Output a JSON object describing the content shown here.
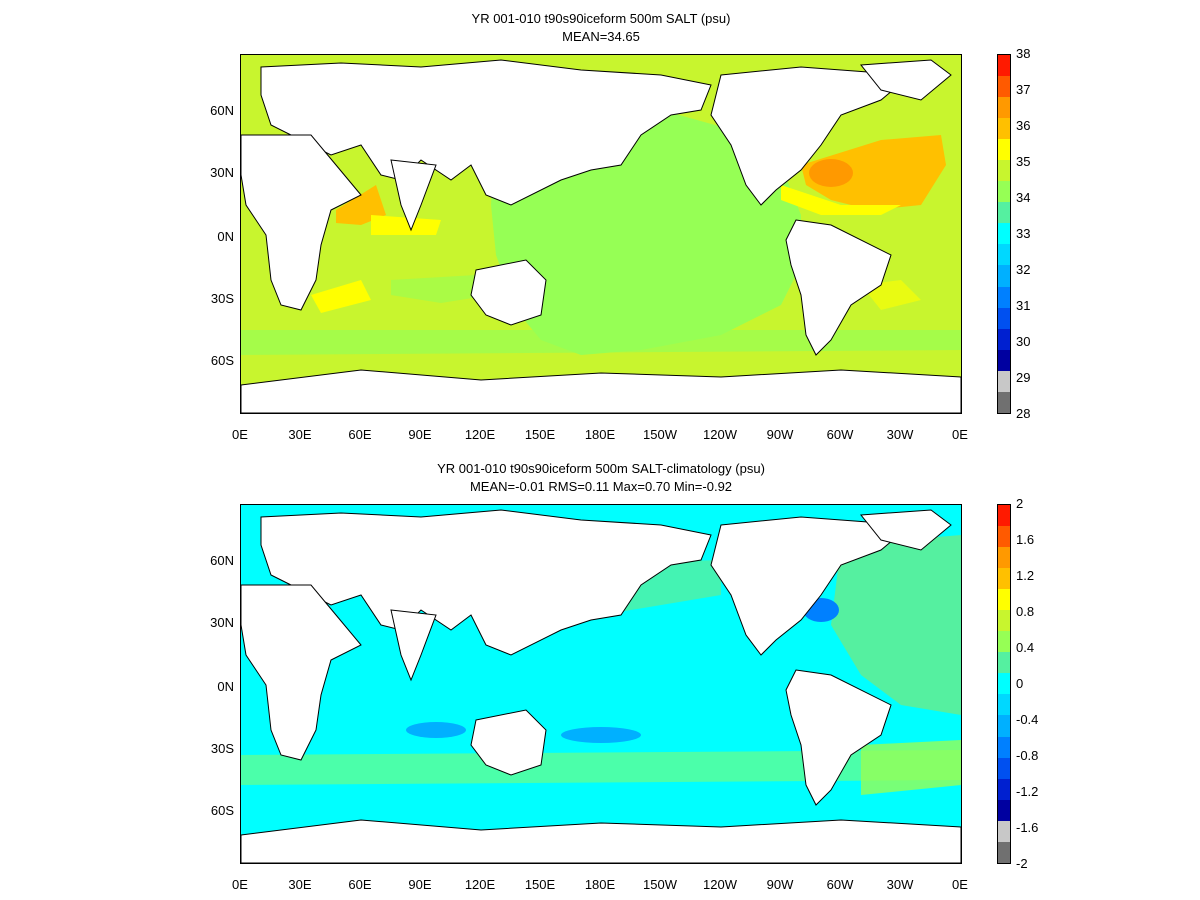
{
  "panel_top": {
    "title": "YR 001-010 t90s90iceform 500m SALT (psu)",
    "subtitle": "MEAN=34.65",
    "colorbar_labels": [
      "38",
      "37",
      "36",
      "35",
      "34",
      "33",
      "32",
      "31",
      "30",
      "29",
      "28"
    ],
    "colorbar_colors": [
      "#ff1a00",
      "#ff5a00",
      "#ff9900",
      "#ffc000",
      "#ffff00",
      "#c8f52e",
      "#96ff55",
      "#55f0a0",
      "#00ffff",
      "#00d8ff",
      "#00b0ff",
      "#0080ff",
      "#0050f0",
      "#0020d0",
      "#0000a0",
      "#c8c8c8",
      "#707070"
    ],
    "land_color": "#ffffff",
    "base_color": "#c8f52e"
  },
  "panel_bottom": {
    "title": "YR 001-010 t90s90iceform 500m SALT-climatology (psu)",
    "subtitle": "MEAN=-0.01   RMS=0.11   Max=0.70   Min=-0.92",
    "colorbar_labels": [
      "2",
      "1.6",
      "1.2",
      "0.8",
      "0.4",
      "0",
      "-0.4",
      "-0.8",
      "-1.2",
      "-1.6",
      "-2"
    ],
    "colorbar_colors": [
      "#ff1a00",
      "#ff5a00",
      "#ff9900",
      "#ffc000",
      "#ffff00",
      "#c8f52e",
      "#96ff55",
      "#55f0a0",
      "#00ffff",
      "#00d8ff",
      "#00b0ff",
      "#0080ff",
      "#0050f0",
      "#0020d0",
      "#0000a0",
      "#c8c8c8",
      "#707070"
    ],
    "land_color": "#ffffff",
    "base_color": "#00ffff"
  },
  "lat_labels": [
    "60N",
    "30N",
    "0N",
    "30S",
    "60S"
  ],
  "lon_labels": [
    "0E",
    "30E",
    "60E",
    "90E",
    "120E",
    "150E",
    "180E",
    "150W",
    "120W",
    "90W",
    "60W",
    "30W",
    "0E"
  ]
}
